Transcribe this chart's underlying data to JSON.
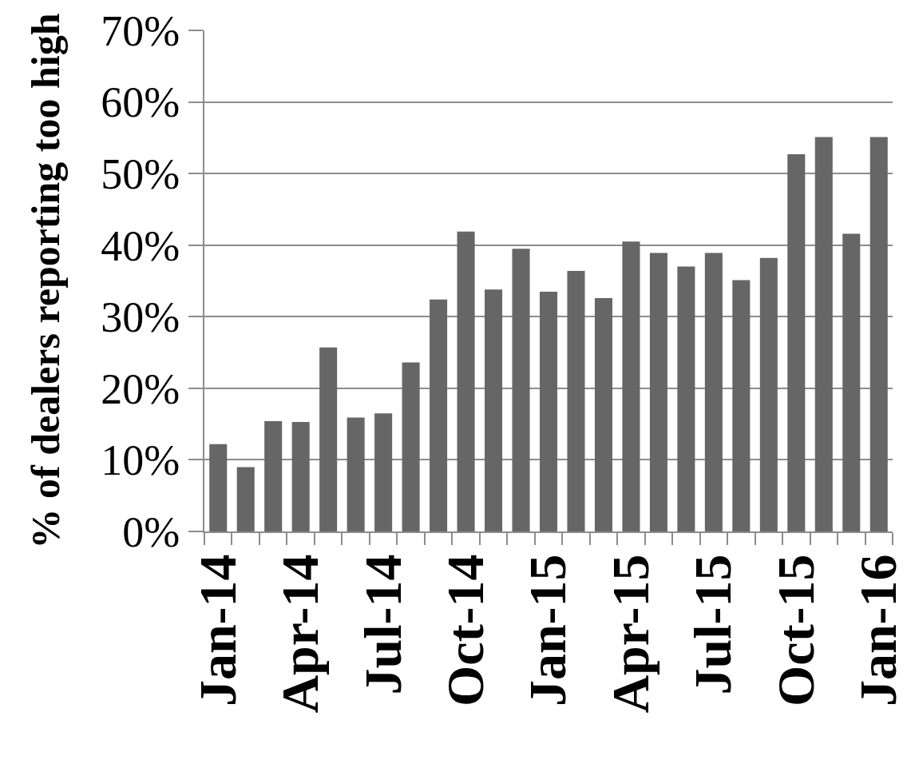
{
  "chart_data": {
    "type": "bar",
    "ylabel": "% of dealers reporting too high",
    "categories": [
      "Jan-14",
      null,
      null,
      "Apr-14",
      null,
      null,
      "Jul-14",
      null,
      null,
      "Oct-14",
      null,
      null,
      "Jan-15",
      null,
      null,
      "Apr-15",
      null,
      null,
      "Jul-15",
      null,
      null,
      "Oct-15",
      null,
      null,
      "Jan-16"
    ],
    "values": [
      12.2,
      9.0,
      15.4,
      15.3,
      25.7,
      15.9,
      16.5,
      23.6,
      32.4,
      41.9,
      33.8,
      39.5,
      33.5,
      36.4,
      32.6,
      40.5,
      38.9,
      37.0,
      38.9,
      35.1,
      38.2,
      52.7,
      55.1,
      41.6,
      55.1
    ],
    "color": "#666666",
    "ylim": [
      0,
      70
    ],
    "yticks": [
      {
        "value": 0,
        "label": "0%"
      },
      {
        "value": 10,
        "label": "10%"
      },
      {
        "value": 20,
        "label": "20%"
      },
      {
        "value": 30,
        "label": "30%"
      },
      {
        "value": 40,
        "label": "40%"
      },
      {
        "value": 50,
        "label": "50%"
      },
      {
        "value": 60,
        "label": "60%"
      },
      {
        "value": 70,
        "label": "70%"
      }
    ],
    "grid": "y"
  }
}
